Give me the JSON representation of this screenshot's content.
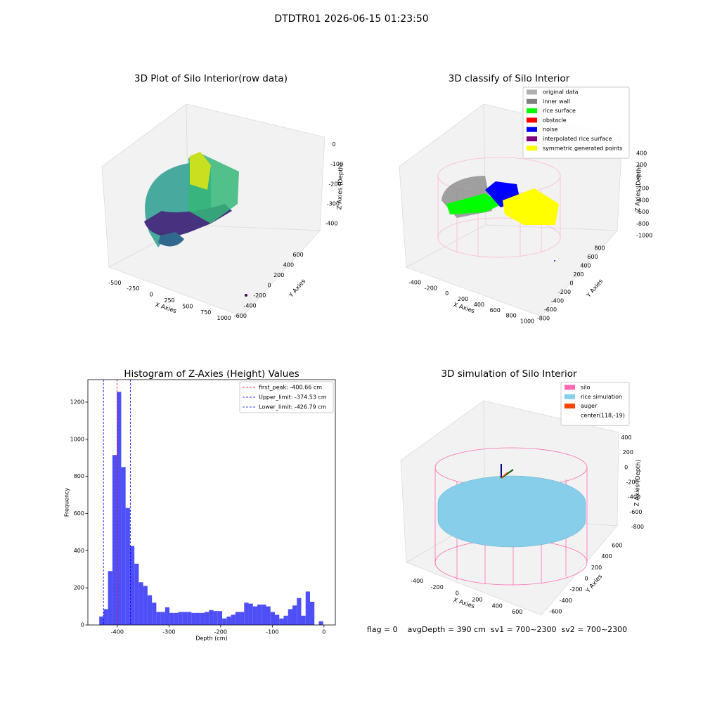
{
  "title": "DTDTR01 2026-06-15 01:23:50",
  "chart_data": [
    {
      "type": "scatter3d",
      "title": "3D Plot of Silo Interior(row data)",
      "xlabel": "X Axies",
      "ylabel": "Y Axies",
      "zlabel": "Z Axies (Depth)",
      "xlim": [
        -600,
        1100
      ],
      "xticks": [
        -500,
        -250,
        0,
        250,
        500,
        750,
        1000
      ],
      "ylim": [
        -700,
        700
      ],
      "yticks": [
        -600,
        -400,
        -200,
        0,
        200,
        400,
        600
      ],
      "zlim": [
        -450,
        20
      ],
      "zticks": [
        -400,
        -300,
        -200,
        -100,
        0
      ]
    },
    {
      "type": "scatter3d",
      "title": "3D classify of Silo Interior",
      "xlabel": "X Axies",
      "ylabel": "Y Axies",
      "zlabel": "Z Axies (Depth)",
      "xlim": [
        -500,
        1100
      ],
      "xticks": [
        -400,
        -200,
        0,
        200,
        400,
        600,
        800,
        1000
      ],
      "ylim": [
        -900,
        900
      ],
      "yticks": [
        -800,
        -600,
        -400,
        -200,
        0,
        200,
        400,
        600,
        800
      ],
      "zlim": [
        -1100,
        500
      ],
      "zticks": [
        -1000,
        -800,
        -600,
        -400,
        -200,
        0,
        200,
        400
      ],
      "legend": [
        {
          "name": "original data",
          "color": "#b0b0b0"
        },
        {
          "name": "inner wall",
          "color": "#808080"
        },
        {
          "name": "rice surface",
          "color": "#00ff00"
        },
        {
          "name": "obstacle",
          "color": "#ff0000"
        },
        {
          "name": "noise",
          "color": "#0000ff"
        },
        {
          "name": "interpolated rice surface",
          "color": "#800080"
        },
        {
          "name": "symmetric generated points",
          "color": "#ffff00"
        }
      ]
    },
    {
      "type": "histogram",
      "title": "Histogram of Z-Axies (Height) Values",
      "xlabel": "Depth (cm)",
      "ylabel": "Frequency",
      "color": "#4f4ff8",
      "bins": [
        -435,
        -426.5,
        -418,
        -409.5,
        -401,
        -392.5,
        -384,
        -375.5,
        -367,
        -358.5,
        -350,
        -341.5,
        -333,
        -324.5,
        -316,
        -307.5,
        -299,
        -290.5,
        -282,
        -273.5,
        -265,
        -256.5,
        -248,
        -239.5,
        -231,
        -222.5,
        -214,
        -205.5,
        -197,
        -188.5,
        -180,
        -171.5,
        -163,
        -154.5,
        -146,
        -137.5,
        -129,
        -120.5,
        -112,
        -103.5,
        -95,
        -86.5,
        -78,
        -69.5,
        -61,
        -52.5,
        -44,
        -35.5,
        -27,
        -18.5,
        -10,
        -1.5
      ],
      "counts": [
        45,
        85,
        290,
        915,
        1255,
        850,
        630,
        425,
        330,
        230,
        210,
        160,
        120,
        70,
        70,
        95,
        65,
        65,
        70,
        70,
        70,
        65,
        65,
        65,
        70,
        80,
        75,
        75,
        35,
        45,
        55,
        70,
        70,
        120,
        115,
        100,
        110,
        110,
        100,
        70,
        55,
        35,
        50,
        85,
        105,
        145,
        50,
        180,
        125,
        0,
        20
      ],
      "xlim": [
        -457,
        22
      ],
      "xticks": [
        -400,
        -300,
        -200,
        -100,
        0
      ],
      "ylim": [
        0,
        1321
      ],
      "yticks": [
        0,
        200,
        400,
        600,
        800,
        1000,
        1200
      ],
      "lines": [
        {
          "name": "first_peak: -400.66 cm",
          "value": -400.66,
          "color": "#ff0000"
        },
        {
          "name": "Upper_limit: -374.53 cm",
          "value": -374.53,
          "color": "#0000ff"
        },
        {
          "name": "Lower_limit: -426.79 cm",
          "value": -426.79,
          "color": "#0000ff"
        }
      ],
      "legend_loc": "upper right"
    },
    {
      "type": "surface3d",
      "title": "3D simulation of Silo Interior",
      "xlabel": "X Axies",
      "ylabel": "Y Axies",
      "zlabel": "Z Axies (Depth)",
      "xlim": [
        -500,
        700
      ],
      "xticks": [
        -400,
        -200,
        0,
        200,
        400,
        600
      ],
      "ylim": [
        -700,
        700
      ],
      "yticks": [
        -600,
        -400,
        -200,
        0,
        200,
        400,
        600
      ],
      "zlim": [
        -900,
        500
      ],
      "zticks": [
        -800,
        -600,
        -400,
        -200,
        0,
        200,
        400
      ],
      "legend": [
        {
          "name": "silo",
          "color": "#ff69b4"
        },
        {
          "name": "rice simulation",
          "color": "#87ceeb"
        },
        {
          "name": "auger",
          "color": "#ff4500"
        },
        {
          "name": "center(118,-19)",
          "color": null
        }
      ]
    }
  ],
  "footer": "flag = 0    avgDepth = 390 cm  sv1 = 700~2300  sv2 = 700~2300"
}
